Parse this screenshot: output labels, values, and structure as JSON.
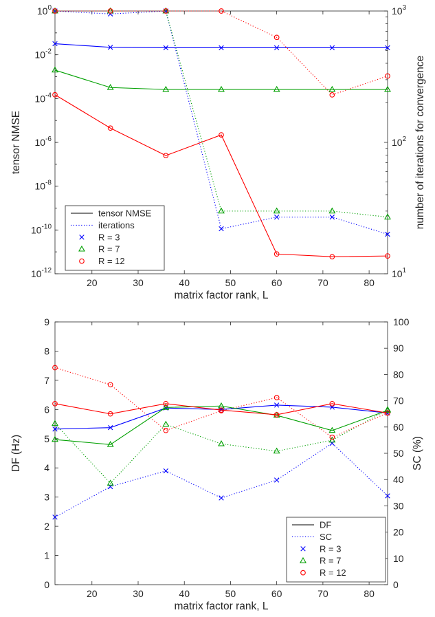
{
  "chart_data": [
    {
      "type": "line",
      "title": "",
      "xlabel": "matrix factor rank, L",
      "ylabel": "tensor NMSE",
      "y2label": "number of iterations for convergence",
      "xlim": [
        12,
        84
      ],
      "xticks": [
        "20",
        "30",
        "40",
        "50",
        "60",
        "70",
        "80"
      ],
      "ylim": [
        1e-12,
        1
      ],
      "yscale": "log",
      "yticks": [
        {
          "base": "10",
          "exp": "-12"
        },
        {
          "base": "10",
          "exp": "-10"
        },
        {
          "base": "10",
          "exp": "-8"
        },
        {
          "base": "10",
          "exp": "-6"
        },
        {
          "base": "10",
          "exp": "-4"
        },
        {
          "base": "10",
          "exp": "-2"
        },
        {
          "base": "10",
          "exp": "0"
        }
      ],
      "y2lim": [
        10,
        1000
      ],
      "y2scale": "log",
      "y2ticks": [
        {
          "base": "10",
          "exp": "1"
        },
        {
          "base": "10",
          "exp": "2"
        },
        {
          "base": "10",
          "exp": "3"
        }
      ],
      "grid": false,
      "legend_position": "bottom-left",
      "legend": [
        "tensor NMSE",
        "iterations",
        "R = 3",
        "R = 7",
        "R = 12"
      ],
      "x": [
        12,
        24,
        36,
        48,
        60,
        72,
        84
      ],
      "series": [
        {
          "name": "R = 3",
          "color": "#0000ff",
          "marker": "x",
          "axis": "left",
          "style": "solid",
          "values": [
            0.032,
            0.022,
            0.021,
            0.021,
            0.021,
            0.021,
            0.021
          ]
        },
        {
          "name": "R = 7",
          "color": "#00a000",
          "marker": "triangle",
          "axis": "left",
          "style": "solid",
          "values": [
            0.002,
            0.00032,
            0.00026,
            0.00026,
            0.00026,
            0.00026,
            0.00026
          ]
        },
        {
          "name": "R = 12",
          "color": "#ff0000",
          "marker": "circle",
          "axis": "left",
          "style": "solid",
          "values": [
            0.00015,
            4.5e-06,
            2.5e-07,
            2.2e-06,
            8e-12,
            6e-12,
            6.5e-12
          ]
        },
        {
          "name": "R = 3",
          "color": "#0000ff",
          "marker": "x",
          "axis": "right",
          "style": "dotted",
          "values": [
            1000,
            950,
            1000,
            22,
            27,
            27,
            20
          ]
        },
        {
          "name": "R = 7",
          "color": "#00a000",
          "marker": "triangle",
          "axis": "right",
          "style": "dotted",
          "values": [
            1000,
            1000,
            1000,
            30,
            30,
            30,
            27
          ]
        },
        {
          "name": "R = 12",
          "color": "#ff0000",
          "marker": "circle",
          "axis": "right",
          "style": "dotted",
          "values": [
            1000,
            1000,
            1000,
            1000,
            630,
            230,
            320
          ]
        }
      ]
    },
    {
      "type": "line",
      "title": "",
      "xlabel": "matrix factor rank, L",
      "ylabel": "DF (Hz)",
      "y2label": "SC (%)",
      "xlim": [
        12,
        84
      ],
      "xticks": [
        "20",
        "30",
        "40",
        "50",
        "60",
        "70",
        "80"
      ],
      "ylim": [
        0,
        9
      ],
      "yticks": [
        "0",
        "1",
        "2",
        "3",
        "4",
        "5",
        "6",
        "7",
        "8",
        "9"
      ],
      "y2lim": [
        0,
        100
      ],
      "y2ticks": [
        "0",
        "10",
        "20",
        "30",
        "40",
        "50",
        "60",
        "70",
        "80",
        "90",
        "100"
      ],
      "grid": false,
      "legend_position": "bottom-right",
      "legend": [
        "DF",
        "SC",
        "R = 3",
        "R = 7",
        "R = 12"
      ],
      "x": [
        12,
        24,
        36,
        48,
        60,
        72,
        84
      ],
      "series": [
        {
          "name": "R = 3",
          "color": "#0000ff",
          "marker": "x",
          "axis": "left",
          "style": "solid",
          "values": [
            5.33,
            5.38,
            6.05,
            6.0,
            6.15,
            6.08,
            5.88
          ]
        },
        {
          "name": "R = 7",
          "color": "#00a000",
          "marker": "triangle",
          "axis": "left",
          "style": "solid",
          "values": [
            4.97,
            4.8,
            6.07,
            6.12,
            5.8,
            5.28,
            5.97
          ]
        },
        {
          "name": "R = 12",
          "color": "#ff0000",
          "marker": "circle",
          "axis": "left",
          "style": "solid",
          "values": [
            6.2,
            5.85,
            6.2,
            5.98,
            5.82,
            6.2,
            5.88
          ]
        },
        {
          "name": "R = 3",
          "color": "#0000ff",
          "marker": "x",
          "axis": "right",
          "style": "dotted",
          "values": [
            25.7,
            37.3,
            43.3,
            33.0,
            39.8,
            53.8,
            33.8
          ]
        },
        {
          "name": "R = 7",
          "color": "#00a000",
          "marker": "triangle",
          "axis": "right",
          "style": "dotted",
          "values": [
            61.3,
            38.6,
            61.0,
            53.6,
            50.8,
            55.0,
            66.6
          ]
        },
        {
          "name": "R = 12",
          "color": "#ff0000",
          "marker": "circle",
          "axis": "right",
          "style": "dotted",
          "values": [
            82.6,
            76.1,
            58.7,
            66.2,
            71.2,
            56.1,
            65.4
          ]
        }
      ]
    }
  ]
}
